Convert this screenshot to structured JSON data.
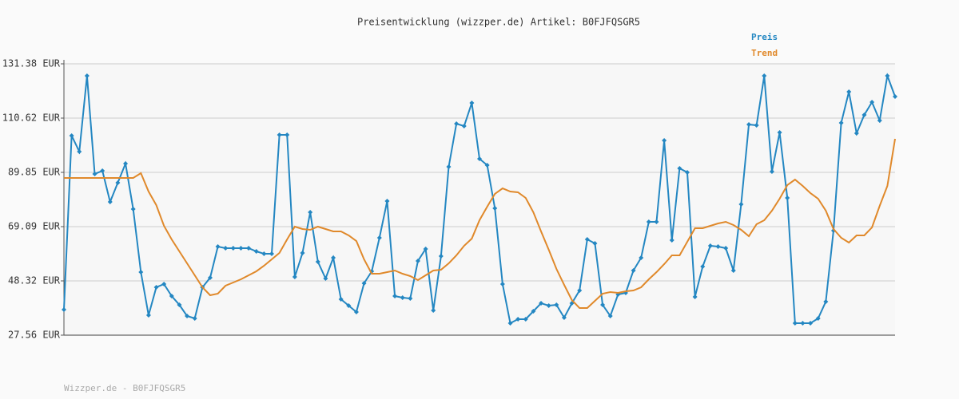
{
  "chart_data": {
    "type": "line",
    "title": "Preisentwicklung (wizzper.de) Artikel: B0FJFQSGR5",
    "footer": "Wizzper.de - B0FJFQSGR5",
    "legend": "top-right",
    "grid": true,
    "ylim": [
      27.56,
      131.38
    ],
    "yticks": [
      {
        "value": 27.56,
        "label": "27.56 EUR"
      },
      {
        "value": 48.32,
        "label": "48.32 EUR"
      },
      {
        "value": 69.09,
        "label": "69.09 EUR"
      },
      {
        "value": 89.85,
        "label": "89.85 EUR"
      },
      {
        "value": 110.62,
        "label": "110.62 EUR"
      },
      {
        "value": 131.38,
        "label": "131.38 EUR"
      }
    ],
    "series": [
      {
        "name": "Preis",
        "color": "#2487c2",
        "markers": true,
        "values": [
          37.33,
          103.9,
          97.79,
          126.8,
          89.24,
          90.46,
          78.55,
          85.88,
          93.21,
          75.81,
          51.68,
          35.19,
          45.88,
          47.1,
          42.52,
          39.16,
          34.89,
          33.97,
          45.88,
          49.55,
          61.45,
          60.84,
          60.84,
          60.84,
          60.84,
          59.62,
          58.71,
          58.71,
          104.2,
          104.2,
          49.85,
          59.01,
          74.58,
          55.65,
          49.24,
          57.18,
          41.3,
          38.86,
          36.42,
          47.41,
          51.99,
          64.81,
          78.86,
          42.52,
          41.91,
          41.61,
          55.96,
          60.54,
          37.03,
          57.79,
          91.99,
          108.48,
          107.56,
          116.42,
          95.04,
          92.6,
          76.11,
          47.1,
          32.14,
          33.67,
          33.67,
          36.72,
          39.77,
          38.86,
          39.16,
          34.28,
          39.77,
          44.66,
          64.2,
          62.68,
          39.16,
          34.89,
          43.13,
          43.74,
          52.29,
          57.18,
          70.92,
          70.92,
          102.07,
          63.9,
          91.38,
          89.85,
          42.22,
          53.82,
          61.76,
          61.45,
          60.84,
          52.29,
          77.64,
          108.17,
          107.87,
          126.8,
          90.16,
          105.12,
          80.08,
          32.14,
          32.14,
          32.14,
          33.97,
          40.38,
          67.56,
          108.78,
          120.69,
          104.81,
          111.84,
          116.72,
          109.7,
          126.8,
          118.86
        ]
      },
      {
        "name": "Trend",
        "color": "#e0892b",
        "markers": false,
        "values": [
          87.71,
          87.71,
          87.71,
          87.71,
          87.71,
          87.71,
          87.71,
          87.71,
          87.71,
          87.71,
          89.55,
          82.52,
          77.33,
          69.39,
          64.2,
          59.62,
          55.04,
          50.46,
          45.88,
          42.83,
          43.44,
          46.49,
          47.71,
          48.93,
          50.46,
          51.99,
          54.13,
          56.57,
          59.01,
          64.2,
          69.09,
          68.17,
          67.87,
          69.09,
          68.17,
          67.26,
          67.26,
          65.73,
          63.59,
          56.57,
          51.07,
          51.07,
          51.68,
          52.29,
          51.07,
          50.16,
          48.63,
          50.46,
          52.29,
          52.6,
          55.04,
          58.1,
          61.76,
          64.51,
          71.53,
          76.72,
          81.61,
          83.74,
          82.52,
          82.22,
          80.08,
          74.58,
          67.26,
          60.23,
          52.9,
          46.8,
          41.0,
          37.94,
          37.94,
          40.69,
          43.44,
          44.05,
          43.74,
          44.35,
          44.66,
          45.88,
          48.93,
          51.68,
          54.74,
          58.1,
          58.1,
          63.29,
          68.48,
          68.48,
          69.39,
          70.31,
          70.92,
          69.7,
          67.87,
          65.42,
          70.0,
          71.53,
          75.19,
          79.77,
          84.97,
          87.1,
          84.66,
          81.91,
          79.77,
          75.19,
          68.17,
          64.81,
          62.98,
          65.73,
          65.73,
          68.78,
          77.03,
          84.66,
          102.68
        ]
      }
    ]
  }
}
